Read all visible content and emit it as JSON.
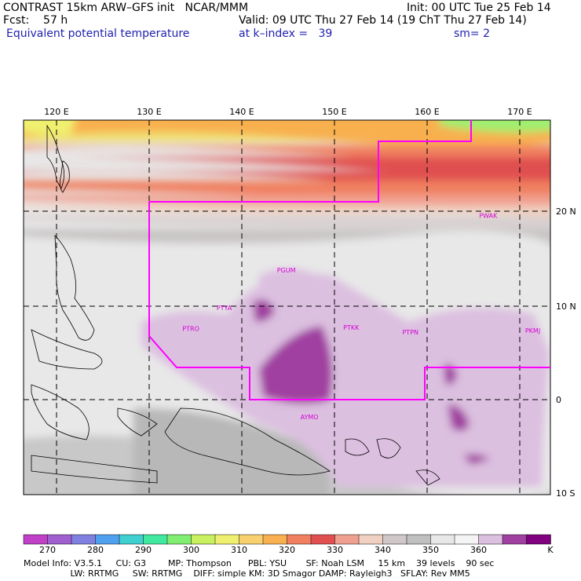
{
  "header": {
    "title": "CONTRAST 15km ARW–GFS init   NCAR/MMM",
    "init": "Init: 00 UTC Tue 25 Feb 14",
    "fcst": "Fcst:    57 h",
    "valid": "Valid: 09 UTC Thu 27 Feb 14 (19 ChT Thu 27 Feb 14)",
    "field": "Equivalent potential temperature",
    "level": "at k–index =   39",
    "smooth": "sm= 2"
  },
  "map": {
    "lon_labels": [
      "120 E",
      "130 E",
      "140 E",
      "150 E",
      "160 E",
      "170 E"
    ],
    "lat_labels": [
      "20 N",
      "10 N",
      "0",
      "10 S"
    ],
    "stations": [
      {
        "id": "PGUM",
        "lon": 144.8,
        "lat": 13.5
      },
      {
        "id": "PTYA",
        "lon": 138.1,
        "lat": 9.5
      },
      {
        "id": "PTRO",
        "lon": 134.5,
        "lat": 7.3
      },
      {
        "id": "PTKK",
        "lon": 151.8,
        "lat": 7.4
      },
      {
        "id": "PTPN",
        "lon": 158.2,
        "lat": 6.9
      },
      {
        "id": "PKMJ",
        "lon": 171.4,
        "lat": 7.1
      },
      {
        "id": "PWAK",
        "lon": 166.6,
        "lat": 19.3
      },
      {
        "id": "AYMO",
        "lon": 147.3,
        "lat": -2.1
      }
    ]
  },
  "colorbar": {
    "labels": [
      "270",
      "280",
      "290",
      "300",
      "310",
      "320",
      "330",
      "340",
      "350",
      "360",
      "K"
    ],
    "colors": [
      "#c040c8",
      "#a060d0",
      "#8080e0",
      "#50a0f0",
      "#40d0d0",
      "#40e8a0",
      "#80ee70",
      "#c8f060",
      "#f0f070",
      "#f8d070",
      "#f8b050",
      "#f08060",
      "#e05050",
      "#f0a090",
      "#f0d0c0",
      "#d0c8c8",
      "#c0c0c0",
      "#e8e8e8",
      "#f4f4f4",
      "#dcc0e0",
      "#a040a0",
      "#800080"
    ]
  },
  "footer": {
    "line1": "Model Info: V3.5.1     CU: G3        MP: Thompson      PBL: YSU       SF: Noah LSM     15 km    39 levels    90 sec",
    "line2": "                 LW: RRTMG     SW: RRTMG    DIFF: simple KM: 3D Smagor DAMP: Rayleigh3   SFLAY: Rev MM5"
  }
}
